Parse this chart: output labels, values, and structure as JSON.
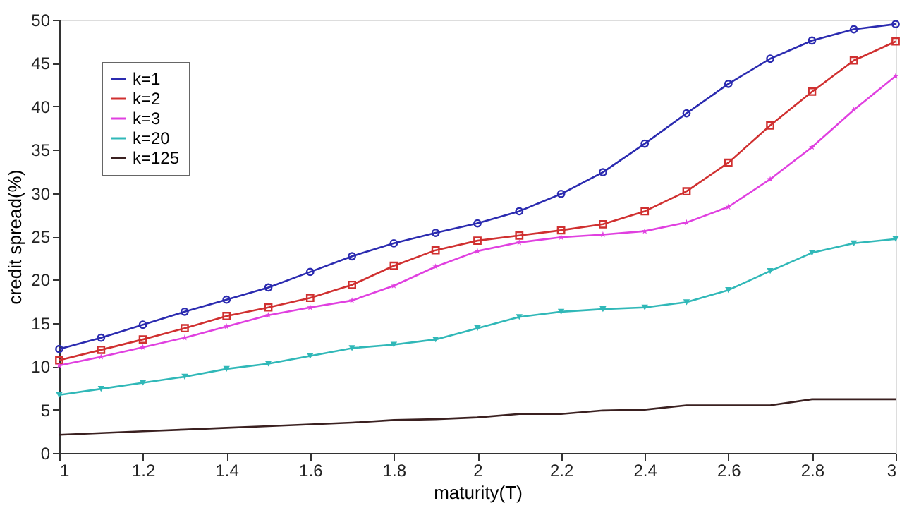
{
  "chart_data": {
    "type": "line",
    "xlabel": "maturity(T)",
    "ylabel": "credit spread(%)",
    "x": [
      1,
      1.1,
      1.2,
      1.3,
      1.4,
      1.5,
      1.6,
      1.7,
      1.8,
      1.9,
      2,
      2.1,
      2.2,
      2.3,
      2.4,
      2.5,
      2.6,
      2.7,
      2.8,
      2.9,
      3
    ],
    "series": [
      {
        "name": "k=1",
        "color": "#2b2bb0",
        "marker": "circle",
        "values": [
          12,
          13.3,
          14.8,
          16.3,
          17.7,
          19.1,
          20.9,
          22.7,
          24.2,
          25.4,
          26.5,
          27.9,
          29.9,
          32.4,
          35.7,
          39.2,
          42.6,
          45.5,
          47.6,
          48.9,
          49.5
        ]
      },
      {
        "name": "k=2",
        "color": "#d03030",
        "marker": "square",
        "values": [
          10.7,
          11.9,
          13.1,
          14.4,
          15.8,
          16.8,
          17.9,
          19.4,
          21.6,
          23.4,
          24.5,
          25.1,
          25.7,
          26.4,
          27.9,
          30.2,
          33.5,
          37.8,
          41.7,
          45.3,
          47.5
        ]
      },
      {
        "name": "k=3",
        "color": "#e040e0",
        "marker": "star",
        "values": [
          10.1,
          11.1,
          12.2,
          13.3,
          14.6,
          15.9,
          16.8,
          17.6,
          19.3,
          21.5,
          23.3,
          24.3,
          24.9,
          25.2,
          25.6,
          26.6,
          28.4,
          31.6,
          35.3,
          39.6,
          43.5
        ]
      },
      {
        "name": "k=20",
        "color": "#30b8b8",
        "marker": "triangle",
        "values": [
          6.7,
          7.4,
          8.1,
          8.8,
          9.7,
          10.3,
          11.2,
          12.1,
          12.5,
          13.1,
          14.4,
          15.7,
          16.3,
          16.6,
          16.8,
          17.4,
          18.8,
          21.0,
          23.1,
          24.2,
          24.7
        ]
      },
      {
        "name": "k=125",
        "color": "#3a2020",
        "marker": "none",
        "values": [
          2.1,
          2.3,
          2.5,
          2.7,
          2.9,
          3.1,
          3.3,
          3.5,
          3.8,
          3.9,
          4.1,
          4.5,
          4.5,
          4.9,
          5.0,
          5.5,
          5.5,
          5.5,
          6.2,
          6.2,
          6.2
        ]
      }
    ],
    "xlim": [
      1,
      3
    ],
    "xticks": [
      1,
      1.2,
      1.4,
      1.6,
      1.8,
      2,
      2.2,
      2.4,
      2.6,
      2.8,
      3
    ],
    "ylim": [
      0,
      50
    ],
    "yticks": [
      0,
      5,
      10,
      15,
      20,
      25,
      30,
      35,
      40,
      45,
      50
    ],
    "grid": false,
    "legend": "top left",
    "line_style": "solid"
  }
}
